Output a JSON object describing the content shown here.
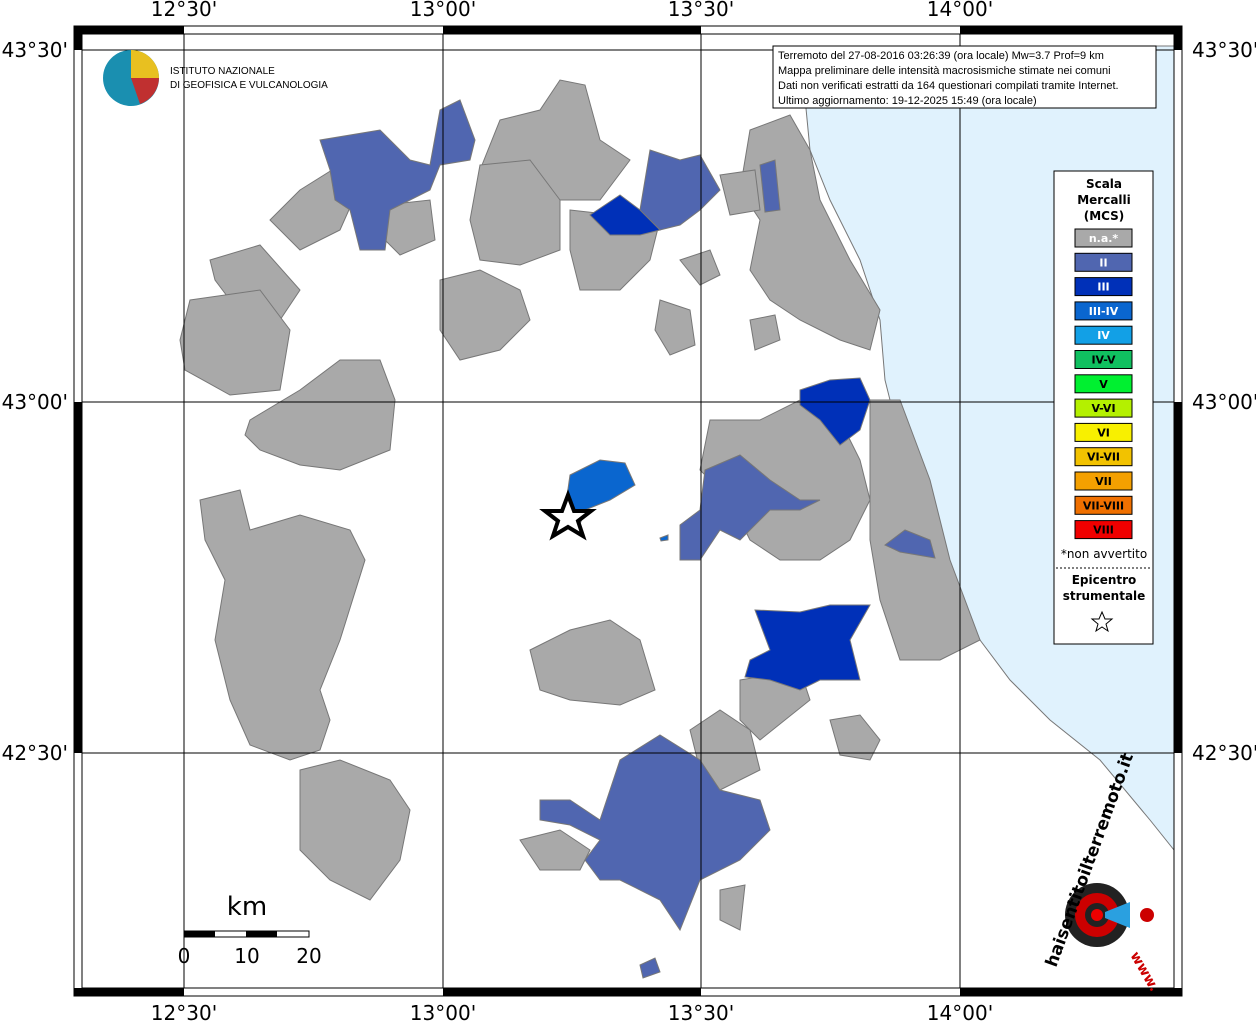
{
  "header": {
    "logo_lines": [
      "ISTITUTO NAZIONALE",
      "DI GEOFISICA E VULCANOLOGIA"
    ]
  },
  "info": [
    "Terremoto del 27-08-2016 03:26:39 (ora locale) Mw=3.7 Prof=9 km",
    "Mappa preliminare delle intensità macrosismiche stimate nei comuni",
    "Dati non verificati estratti da 164 questionari compilati tramite Internet.",
    "Ultimo aggiornamento: 19-12-2025 15:49 (ora locale)"
  ],
  "graticule": {
    "longitude": [
      "12°30'",
      "13°00'",
      "13°30'",
      "14°00'"
    ],
    "latitude": [
      "43°30'",
      "43°00'",
      "42°30'"
    ]
  },
  "legend": {
    "title": [
      "Scala",
      "Mercalli",
      "(MCS)"
    ],
    "items": [
      {
        "label": "n.a.*",
        "color": "#a9a9a9"
      },
      {
        "label": "II",
        "color": "#5066b0"
      },
      {
        "label": "III",
        "color": "#0030b8"
      },
      {
        "label": "III-IV",
        "color": "#0a66cf"
      },
      {
        "label": "IV",
        "color": "#12a0e6"
      },
      {
        "label": "IV-V",
        "color": "#10c060"
      },
      {
        "label": "V",
        "color": "#00f030"
      },
      {
        "label": "V-VI",
        "color": "#b4f000"
      },
      {
        "label": "VI",
        "color": "#f8f000"
      },
      {
        "label": "VI-VII",
        "color": "#f2c200"
      },
      {
        "label": "VII",
        "color": "#f4a000"
      },
      {
        "label": "VII-VIII",
        "color": "#f07000"
      },
      {
        "label": "VIII",
        "color": "#f00000"
      }
    ],
    "note": "*non avvertito",
    "epicenter": [
      "Epicentro",
      "strumentale"
    ]
  },
  "scale_bar": {
    "unit": "km",
    "labels": [
      0,
      10,
      20
    ]
  },
  "footer_logo": {
    "site": "haisentitoilterremoto.it",
    "prefix": "www."
  }
}
